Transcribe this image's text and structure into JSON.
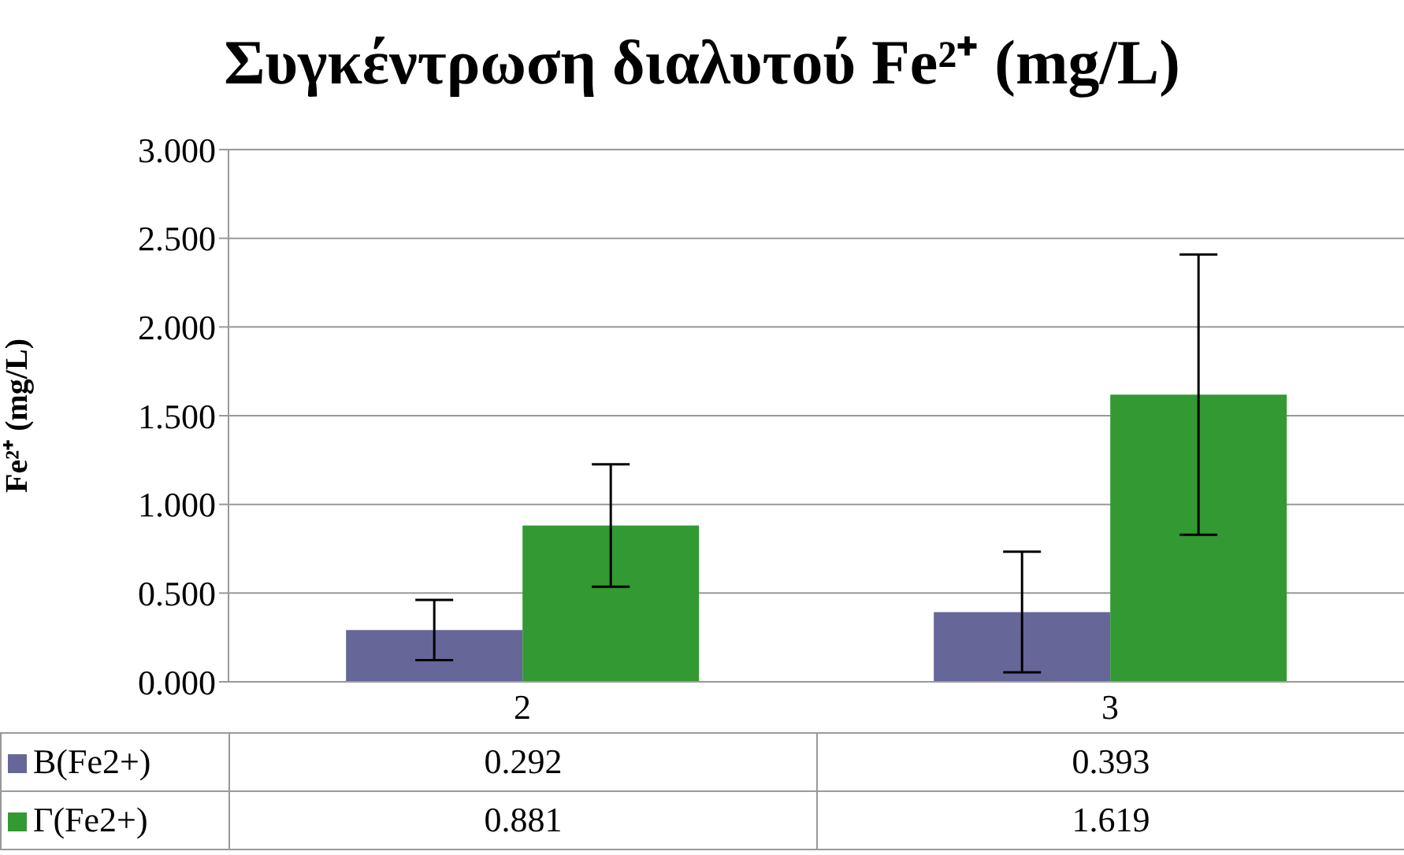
{
  "chart_data": {
    "type": "bar",
    "title": "Συγκέντρωση διαλυτού Fe²⁺ (mg/L)",
    "ylabel": "Fe²⁺ (mg/L)",
    "categories": [
      "2",
      "3"
    ],
    "series": [
      {
        "name": "B(Fe2+)",
        "color": "#666699",
        "values": [
          0.292,
          0.393
        ],
        "errors": [
          0.17,
          0.34
        ]
      },
      {
        "name": "Γ(Fe2+)",
        "color": "#339933",
        "values": [
          0.881,
          1.619
        ],
        "errors": [
          0.345,
          0.79
        ]
      }
    ],
    "ylim": [
      0,
      3
    ],
    "yticks": [
      {
        "value": 0,
        "label": "0.000"
      },
      {
        "value": 0.5,
        "label": "0.500"
      },
      {
        "value": 1,
        "label": "1.000"
      },
      {
        "value": 1.5,
        "label": "1.500"
      },
      {
        "value": 2,
        "label": "2.000"
      },
      {
        "value": 2.5,
        "label": "2.500"
      },
      {
        "value": 3,
        "label": "3.000"
      }
    ],
    "grid": "y",
    "legend": "bottom",
    "data_labels": true
  }
}
